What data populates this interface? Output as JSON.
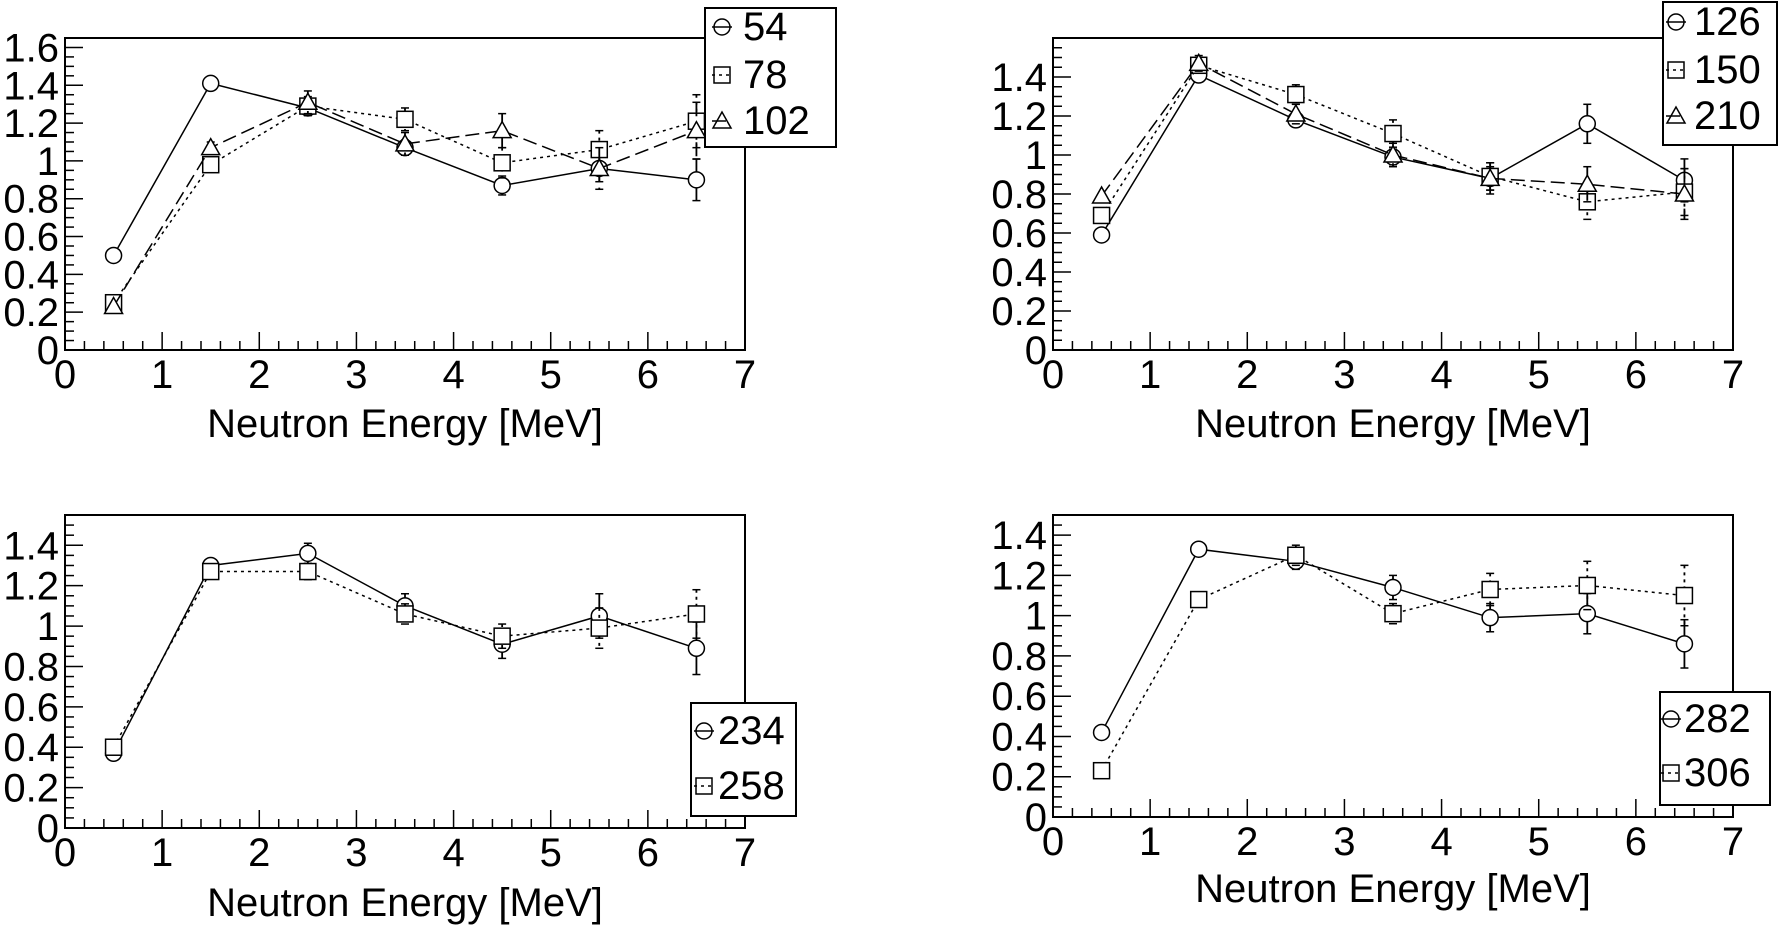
{
  "charts": [
    {
      "xlabel": "Neutron Energy [MeV]",
      "ylabel": "",
      "xlim": [
        0,
        7
      ],
      "ylim": [
        0,
        1.65
      ],
      "xticks": [
        "0",
        "1",
        "2",
        "3",
        "4",
        "5",
        "6",
        "7"
      ],
      "yticks": [
        "0",
        "0.2",
        "0.4",
        "0.6",
        "0.8",
        "1",
        "1.2",
        "1.4",
        "1.6"
      ],
      "legend": {
        "entries": [
          "54",
          "78",
          "102"
        ]
      }
    },
    {
      "xlabel": "Neutron Energy [MeV]",
      "ylabel": "",
      "xlim": [
        0,
        7
      ],
      "ylim": [
        0,
        1.6
      ],
      "xticks": [
        "0",
        "1",
        "2",
        "3",
        "4",
        "5",
        "6",
        "7"
      ],
      "yticks": [
        "0",
        "0.2",
        "0.4",
        "0.6",
        "0.8",
        "1",
        "1.2",
        "1.4"
      ],
      "legend": {
        "entries": [
          "126",
          "150",
          "210"
        ]
      }
    },
    {
      "xlabel": "Neutron Energy [MeV]",
      "ylabel": "",
      "xlim": [
        0,
        7
      ],
      "ylim": [
        0,
        1.55
      ],
      "xticks": [
        "0",
        "1",
        "2",
        "3",
        "4",
        "5",
        "6",
        "7"
      ],
      "yticks": [
        "0",
        "0.2",
        "0.4",
        "0.6",
        "0.8",
        "1",
        "1.2",
        "1.4"
      ],
      "legend": {
        "entries": [
          "234",
          "258"
        ]
      }
    },
    {
      "xlabel": "Neutron Energy [MeV]",
      "ylabel": "",
      "xlim": [
        0,
        7
      ],
      "ylim": [
        0,
        1.5
      ],
      "xticks": [
        "0",
        "1",
        "2",
        "3",
        "4",
        "5",
        "6",
        "7"
      ],
      "yticks": [
        "0",
        "0.2",
        "0.4",
        "0.6",
        "0.8",
        "1",
        "1.2",
        "1.4"
      ],
      "legend": {
        "entries": [
          "282",
          "306"
        ]
      }
    }
  ],
  "chart_data": [
    {
      "type": "line",
      "x": [
        0.5,
        1.5,
        2.5,
        3.5,
        4.5,
        5.5,
        6.5
      ],
      "xlabel": "Neutron Energy [MeV]",
      "ylabel": "",
      "xlim": [
        0,
        7
      ],
      "ylim": [
        0,
        1.65
      ],
      "legend_position": "top-right",
      "series": [
        {
          "name": "54",
          "marker": "circle",
          "line_style": "solid",
          "values": [
            0.5,
            1.41,
            1.28,
            1.07,
            0.87,
            0.96,
            0.9
          ],
          "errors": [
            0.01,
            0.02,
            0.04,
            0.04,
            0.05,
            0.07,
            0.11
          ]
        },
        {
          "name": "78",
          "marker": "square",
          "line_style": "dotted",
          "values": [
            0.25,
            0.98,
            1.29,
            1.22,
            0.99,
            1.06,
            1.21
          ],
          "errors": [
            0.01,
            0.03,
            0.05,
            0.06,
            0.08,
            0.1,
            0.14
          ]
        },
        {
          "name": "102",
          "marker": "triangle",
          "line_style": "dashed",
          "values": [
            0.23,
            1.07,
            1.31,
            1.09,
            1.16,
            0.96,
            1.16
          ],
          "errors": [
            0.01,
            0.03,
            0.06,
            0.06,
            0.09,
            0.11,
            0.15
          ]
        }
      ]
    },
    {
      "type": "line",
      "x": [
        0.5,
        1.5,
        2.5,
        3.5,
        4.5,
        5.5,
        6.5
      ],
      "xlabel": "Neutron Energy [MeV]",
      "ylabel": "",
      "xlim": [
        0,
        7
      ],
      "ylim": [
        0,
        1.6
      ],
      "legend_position": "top-right",
      "series": [
        {
          "name": "126",
          "marker": "circle",
          "line_style": "solid",
          "values": [
            0.59,
            1.41,
            1.18,
            0.99,
            0.88,
            1.16,
            0.87
          ],
          "errors": [
            0.01,
            0.02,
            0.03,
            0.04,
            0.06,
            0.1,
            0.11
          ]
        },
        {
          "name": "150",
          "marker": "square",
          "line_style": "dotted",
          "values": [
            0.69,
            1.46,
            1.31,
            1.11,
            0.89,
            0.76,
            0.81
          ],
          "errors": [
            0.01,
            0.03,
            0.05,
            0.07,
            0.07,
            0.09,
            0.12
          ]
        },
        {
          "name": "210",
          "marker": "triangle",
          "line_style": "dashed",
          "values": [
            0.79,
            1.47,
            1.21,
            1.0,
            0.88,
            0.85,
            0.8
          ],
          "errors": [
            0.01,
            0.04,
            0.05,
            0.06,
            0.08,
            0.09,
            0.13
          ]
        }
      ]
    },
    {
      "type": "line",
      "x": [
        0.5,
        1.5,
        2.5,
        3.5,
        4.5,
        5.5,
        6.5
      ],
      "xlabel": "Neutron Energy [MeV]",
      "ylabel": "",
      "xlim": [
        0,
        7
      ],
      "ylim": [
        0,
        1.55
      ],
      "legend_position": "bottom-right",
      "series": [
        {
          "name": "234",
          "marker": "circle",
          "line_style": "solid",
          "values": [
            0.37,
            1.3,
            1.36,
            1.1,
            0.91,
            1.05,
            0.89
          ],
          "errors": [
            0.01,
            0.02,
            0.05,
            0.06,
            0.07,
            0.11,
            0.13
          ]
        },
        {
          "name": "258",
          "marker": "square",
          "line_style": "dotted",
          "values": [
            0.4,
            1.27,
            1.27,
            1.06,
            0.95,
            0.99,
            1.06
          ],
          "errors": [
            0.01,
            0.03,
            0.04,
            0.05,
            0.06,
            0.1,
            0.12
          ]
        }
      ]
    },
    {
      "type": "line",
      "x": [
        0.5,
        1.5,
        2.5,
        3.5,
        4.5,
        5.5,
        6.5
      ],
      "xlabel": "Neutron Energy [MeV]",
      "ylabel": "",
      "xlim": [
        0,
        7
      ],
      "ylim": [
        0,
        1.5
      ],
      "legend_position": "bottom-right",
      "series": [
        {
          "name": "282",
          "marker": "circle",
          "line_style": "solid",
          "values": [
            0.42,
            1.33,
            1.27,
            1.14,
            0.99,
            1.01,
            0.86
          ],
          "errors": [
            0.01,
            0.02,
            0.04,
            0.06,
            0.07,
            0.1,
            0.12
          ]
        },
        {
          "name": "306",
          "marker": "square",
          "line_style": "dotted",
          "values": [
            0.23,
            1.08,
            1.3,
            1.01,
            1.13,
            1.15,
            1.1
          ],
          "errors": [
            0.01,
            0.03,
            0.05,
            0.05,
            0.08,
            0.12,
            0.15
          ]
        }
      ]
    }
  ]
}
